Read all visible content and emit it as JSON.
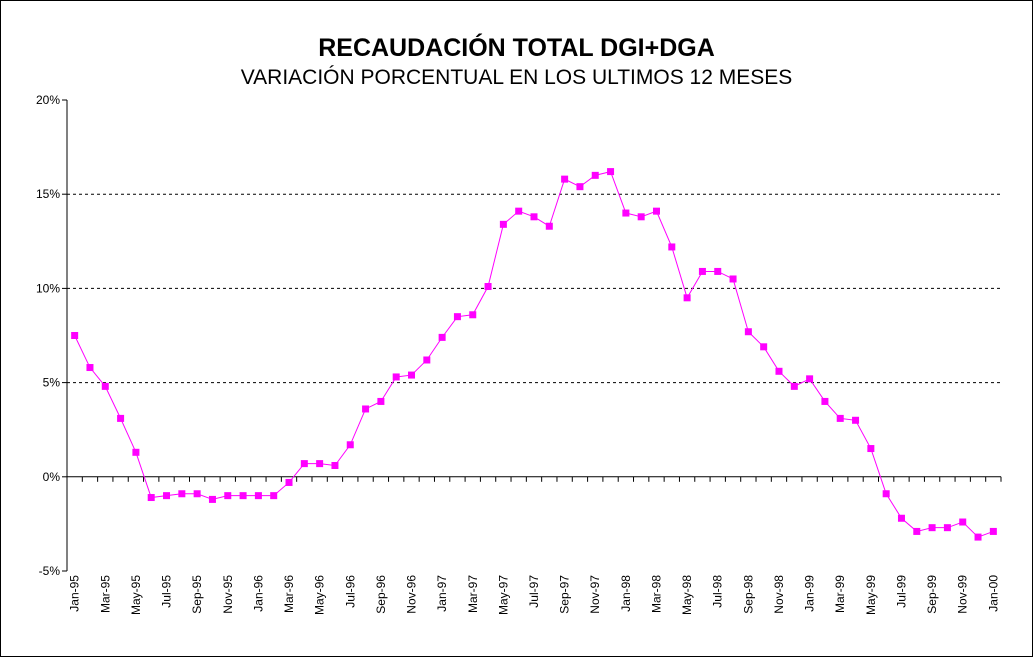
{
  "chart_data": {
    "type": "line",
    "title": "RECAUDACIÓN TOTAL DGI+DGA",
    "subtitle": "VARIACIÓN PORCENTUAL EN LOS ULTIMOS 12 MESES",
    "xlabel": "",
    "ylabel": "",
    "ylim": [
      -5,
      20
    ],
    "yticks": [
      "-5%",
      "0%",
      "5%",
      "10%",
      "15%",
      "20%"
    ],
    "ytick_values": [
      -5,
      0,
      5,
      10,
      15,
      20
    ],
    "grid": "horizontal dashed at 5%, 10%, 15%",
    "legend": "none",
    "x_tick_labels": [
      "Jan-95",
      "Mar-95",
      "May-95",
      "Jul-95",
      "Sep-95",
      "Nov-95",
      "Jan-96",
      "Mar-96",
      "May-96",
      "Jul-96",
      "Sep-96",
      "Nov-96",
      "Jan-97",
      "Mar-97",
      "May-97",
      "Jul-97",
      "Sep-97",
      "Nov-97",
      "Jan-98",
      "Mar-98",
      "May-98",
      "Jul-98",
      "Sep-98",
      "Nov-98",
      "Jan-99",
      "Mar-99",
      "May-99",
      "Jul-99",
      "Sep-99",
      "Nov-99",
      "Jan-00"
    ],
    "color": "#ff00ff",
    "series": [
      {
        "values": [
          7.5,
          5.8,
          4.8,
          3.1,
          1.3,
          -1.1,
          -1.0,
          -0.9,
          -0.9,
          -1.2,
          -1.0,
          -1.0,
          -1.0,
          -1.0,
          -0.3,
          0.7,
          0.7,
          0.6,
          1.7,
          3.6,
          4.0,
          5.3,
          5.4,
          6.2,
          7.4,
          8.5,
          8.6,
          10.1,
          13.4,
          14.1,
          13.8,
          13.3,
          15.8,
          15.4,
          16.0,
          16.2,
          14.0,
          13.8,
          14.1,
          12.2,
          9.5,
          10.9,
          10.9,
          10.5,
          7.7,
          6.9,
          5.6,
          4.8,
          5.2,
          4.0,
          3.1,
          3.0,
          1.5,
          -0.9,
          -2.2,
          -2.9,
          -2.7,
          -2.7,
          -2.4,
          -3.2,
          -2.9
        ]
      }
    ]
  }
}
